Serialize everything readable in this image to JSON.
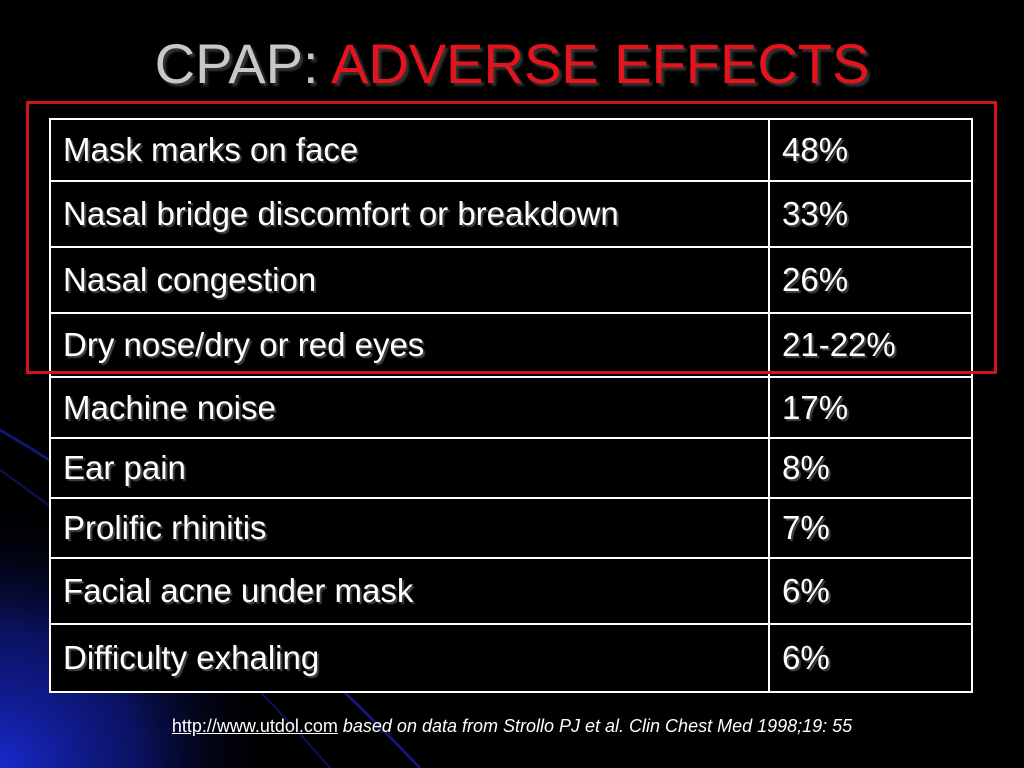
{
  "slide": {
    "title_part1": "CPAP: ",
    "title_part2": "ADVERSE EFFECTS"
  },
  "table": {
    "rows": [
      {
        "effect": "Mask marks on face",
        "rate": "48%"
      },
      {
        "effect": "Nasal bridge discomfort or breakdown",
        "rate": "33%"
      },
      {
        "effect": "Nasal congestion",
        "rate": "26%"
      },
      {
        "effect": "Dry nose/dry or red eyes",
        "rate": "21-22%"
      },
      {
        "effect": "Machine noise",
        "rate": "17%"
      },
      {
        "effect": "Ear pain",
        "rate": "8%"
      },
      {
        "effect": "Prolific rhinitis",
        "rate": "7%"
      },
      {
        "effect": "Facial acne under mask",
        "rate": "6%"
      },
      {
        "effect": "Difficulty exhaling",
        "rate": "6%"
      }
    ]
  },
  "footnote": {
    "link_text": "http://www.utdol.com",
    "text": " based on data from Strollo PJ et al. Clin Chest Med 1998;19: 55"
  },
  "colors": {
    "background": "#000000",
    "title_gray": "#c8c8c8",
    "title_red": "#e3141c",
    "highlight_border": "#d0151a",
    "glow_blue": "#1a2bd9"
  }
}
